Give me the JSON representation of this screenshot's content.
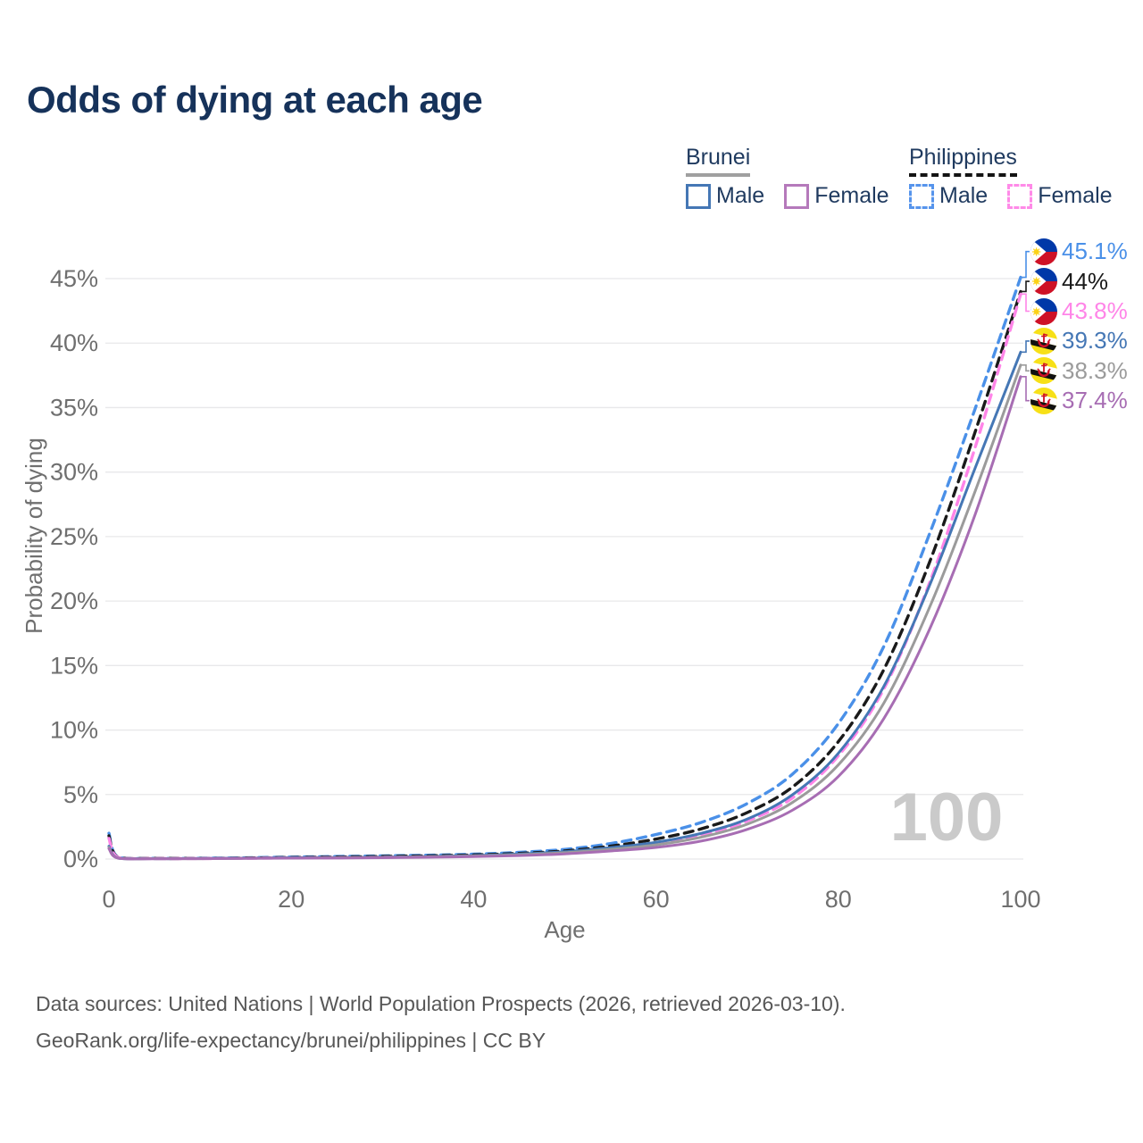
{
  "title": "Odds of dying at each age",
  "legend": {
    "groups": [
      {
        "name": "Brunei",
        "underline_style": "solid",
        "underline_color": "#a0a0a0",
        "items": [
          {
            "label": "Male",
            "color": "#4577b5",
            "dashed": false
          },
          {
            "label": "Female",
            "color": "#b579bb",
            "dashed": false
          }
        ]
      },
      {
        "name": "Philippines",
        "underline_style": "dashed",
        "underline_color": "#141414",
        "items": [
          {
            "label": "Male",
            "color": "#5694ec",
            "dashed": true
          },
          {
            "label": "Female",
            "color": "#ff8ae8",
            "dashed": true
          }
        ]
      }
    ]
  },
  "chart_data": {
    "type": "line",
    "title": "Odds of dying at each age",
    "xlabel": "Age",
    "ylabel": "Probability of dying",
    "xlim": [
      0,
      100
    ],
    "ylim": [
      0,
      47
    ],
    "xticks": [
      0,
      20,
      40,
      60,
      80,
      100
    ],
    "ytick_values": [
      0,
      5,
      10,
      15,
      20,
      25,
      30,
      35,
      40,
      45
    ],
    "ytick_labels": [
      "0%",
      "5%",
      "10%",
      "15%",
      "20%",
      "25%",
      "30%",
      "35%",
      "40%",
      "45%"
    ],
    "grid": "horizontal-only",
    "legend_position": "top-right",
    "watermark": "100",
    "x": [
      0,
      1,
      5,
      10,
      15,
      20,
      25,
      30,
      35,
      40,
      45,
      50,
      55,
      60,
      65,
      70,
      75,
      80,
      85,
      90,
      95,
      100
    ],
    "series": [
      {
        "name": "Philippines Male",
        "country": "philippines",
        "sex": "male",
        "color": "#4a90e8",
        "dashed": true,
        "end_label": "45.1%",
        "values": [
          2.0,
          0.15,
          0.05,
          0.06,
          0.1,
          0.15,
          0.2,
          0.25,
          0.3,
          0.38,
          0.52,
          0.75,
          1.2,
          1.9,
          2.85,
          4.3,
          6.6,
          10.5,
          16.5,
          25.2,
          34.9,
          45.1
        ]
      },
      {
        "name": "Philippines Both sexes",
        "country": "philippines",
        "sex": "both",
        "color": "#1a1a1a",
        "dashed": true,
        "end_label": "44%",
        "values": [
          1.8,
          0.13,
          0.05,
          0.05,
          0.08,
          0.12,
          0.16,
          0.2,
          0.25,
          0.32,
          0.44,
          0.63,
          1.0,
          1.55,
          2.35,
          3.6,
          5.6,
          9.1,
          14.7,
          23.0,
          33.1,
          44.0
        ]
      },
      {
        "name": "Philippines Female",
        "country": "philippines",
        "sex": "female",
        "color": "#ff85e8",
        "dashed": true,
        "end_label": "43.8%",
        "values": [
          1.6,
          0.12,
          0.04,
          0.04,
          0.06,
          0.09,
          0.11,
          0.14,
          0.18,
          0.25,
          0.35,
          0.52,
          0.8,
          1.2,
          1.85,
          2.95,
          4.75,
          8.0,
          13.2,
          21.4,
          31.9,
          43.8
        ]
      },
      {
        "name": "Brunei Male",
        "country": "brunei",
        "sex": "male",
        "color": "#4577b5",
        "dashed": false,
        "end_label": "39.3%",
        "values": [
          1.0,
          0.08,
          0.03,
          0.04,
          0.07,
          0.1,
          0.12,
          0.15,
          0.2,
          0.27,
          0.39,
          0.57,
          0.88,
          1.3,
          2.0,
          3.1,
          5.0,
          8.2,
          13.4,
          21.2,
          30.3,
          39.3
        ]
      },
      {
        "name": "Brunei Both sexes",
        "country": "brunei",
        "sex": "both",
        "color": "#9b9b9b",
        "dashed": false,
        "end_label": "38.3%",
        "values": [
          0.9,
          0.07,
          0.03,
          0.03,
          0.06,
          0.08,
          0.1,
          0.13,
          0.17,
          0.23,
          0.33,
          0.49,
          0.75,
          1.1,
          1.7,
          2.7,
          4.4,
          7.3,
          12.1,
          19.5,
          28.5,
          38.3
        ]
      },
      {
        "name": "Brunei Female",
        "country": "brunei",
        "sex": "female",
        "color": "#a76db3",
        "dashed": false,
        "end_label": "37.4%",
        "values": [
          0.8,
          0.07,
          0.02,
          0.03,
          0.05,
          0.07,
          0.08,
          0.1,
          0.14,
          0.19,
          0.27,
          0.4,
          0.62,
          0.9,
          1.4,
          2.3,
          3.8,
          6.4,
          10.9,
          17.8,
          26.7,
          37.4
        ]
      }
    ],
    "colors": {
      "grid": "#e8e8ea",
      "tick_text": "#6f6f6f",
      "watermark": "#cacaca",
      "title_text": "#16325a"
    }
  },
  "flags": {
    "philippines": {
      "blue": "#0038a8",
      "red": "#ce1126",
      "yellow": "#fcd116",
      "white": "#ffffff"
    },
    "brunei": {
      "yellow": "#f7e017",
      "white": "#ffffff",
      "black": "#111111",
      "red": "#cf1126"
    }
  },
  "footer": {
    "line1": "Data sources: United Nations | World Population Prospects (2026, retrieved 2026-03-10).",
    "line2": "GeoRank.org/life-expectancy/brunei/philippines | CC BY"
  }
}
